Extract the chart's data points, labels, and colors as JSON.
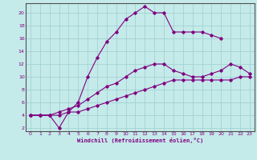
{
  "xlabel": "Windchill (Refroidissement éolien,°C)",
  "bg_color": "#c5eaea",
  "line_color": "#800080",
  "grid_color": "#9ecece",
  "xlim": [
    -0.5,
    23.5
  ],
  "ylim": [
    1.5,
    21.5
  ],
  "xticks": [
    0,
    1,
    2,
    3,
    4,
    5,
    6,
    7,
    8,
    9,
    10,
    11,
    12,
    13,
    14,
    15,
    16,
    17,
    18,
    19,
    20,
    21,
    22,
    23
  ],
  "yticks": [
    2,
    4,
    6,
    8,
    10,
    12,
    14,
    16,
    18,
    20
  ],
  "curve3_x": [
    0,
    1,
    2,
    3,
    4,
    5,
    6,
    7,
    8,
    9,
    10,
    11,
    12,
    13,
    14,
    15,
    16,
    17,
    18,
    19,
    20
  ],
  "curve3_y": [
    4,
    4,
    4,
    2,
    4.5,
    6,
    10,
    13,
    15.5,
    17,
    19,
    20,
    21,
    20,
    20,
    17,
    17,
    17,
    17,
    16.5,
    16
  ],
  "curve1_x": [
    0,
    1,
    2,
    3,
    4,
    5,
    6,
    7,
    8,
    9,
    10,
    11,
    12,
    13,
    14,
    15,
    16,
    17,
    18,
    19,
    20,
    21,
    22,
    23
  ],
  "curve1_y": [
    4,
    4,
    4,
    4.5,
    5,
    5.5,
    6.5,
    7.5,
    8.5,
    9,
    10,
    11,
    11.5,
    12,
    12,
    11,
    10.5,
    10,
    10,
    10.5,
    11,
    12,
    11.5,
    10.5
  ],
  "curve2_x": [
    0,
    1,
    2,
    3,
    4,
    5,
    6,
    7,
    8,
    9,
    10,
    11,
    12,
    13,
    14,
    15,
    16,
    17,
    18,
    19,
    20,
    21,
    22,
    23
  ],
  "curve2_y": [
    4,
    4,
    4,
    4,
    4.5,
    4.5,
    5,
    5.5,
    6,
    6.5,
    7,
    7.5,
    8,
    8.5,
    9,
    9.5,
    9.5,
    9.5,
    9.5,
    9.5,
    9.5,
    9.5,
    10,
    10
  ]
}
